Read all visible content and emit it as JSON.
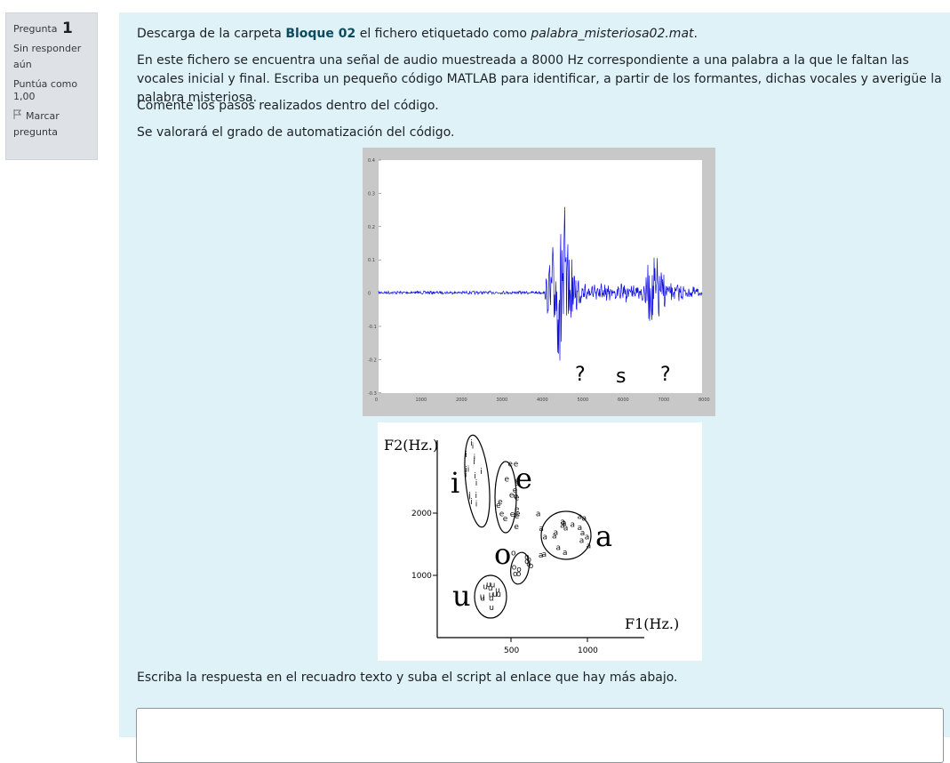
{
  "question_info": {
    "label": "Pregunta",
    "number": "1",
    "status": "Sin responder aún",
    "grade_label": "Puntúa como",
    "grade_value": "1,00",
    "flag_label": "Marcar pregunta"
  },
  "question_text": {
    "p1_before": "Descarga de la carpeta ",
    "p1_bold": "Bloque 02",
    "p1_middle": " el fichero etiquetado como ",
    "p1_italic": "palabra_misteriosa02.mat",
    "p1_end": ".",
    "p2": "En este fichero se encuentra  una señal de audio muestreada a 8000 Hz correspondiente a una palabra a la que le faltan las vocales inicial y final.  Escriba un pequeño código MATLAB para identificar, a partir de los formantes, dichas vocales y averigüe la palabra misteriosa.",
    "p3": "Comente los pasos realizados dentro del código.",
    "p4": "Se valorará el grado de automatización del código.",
    "p5": "Escriba la respuesta en el recuadro texto y suba el script al enlace que hay más abajo."
  },
  "waveform_figure": {
    "y_ticks": [
      "0.4",
      "0.3",
      "0.2",
      "0.1",
      "0",
      "-0.1",
      "-0.2",
      "-0.3"
    ],
    "x_ticks": [
      "0",
      "1000",
      "2000",
      "3000",
      "4000",
      "5000",
      "6000",
      "7000",
      "8000"
    ],
    "annotations": [
      "?",
      "s",
      "?"
    ],
    "colors": {
      "signal": "#1010e0",
      "frame": "#c8c8c8"
    }
  },
  "formant_figure": {
    "y_label": "F2(Hz.)",
    "x_label": "F1(Hz.)",
    "y_ticks": [
      "2000",
      "1000"
    ],
    "x_ticks": [
      "500",
      "1000"
    ],
    "vowels": [
      "i",
      "e",
      "a",
      "o",
      "u"
    ]
  }
}
